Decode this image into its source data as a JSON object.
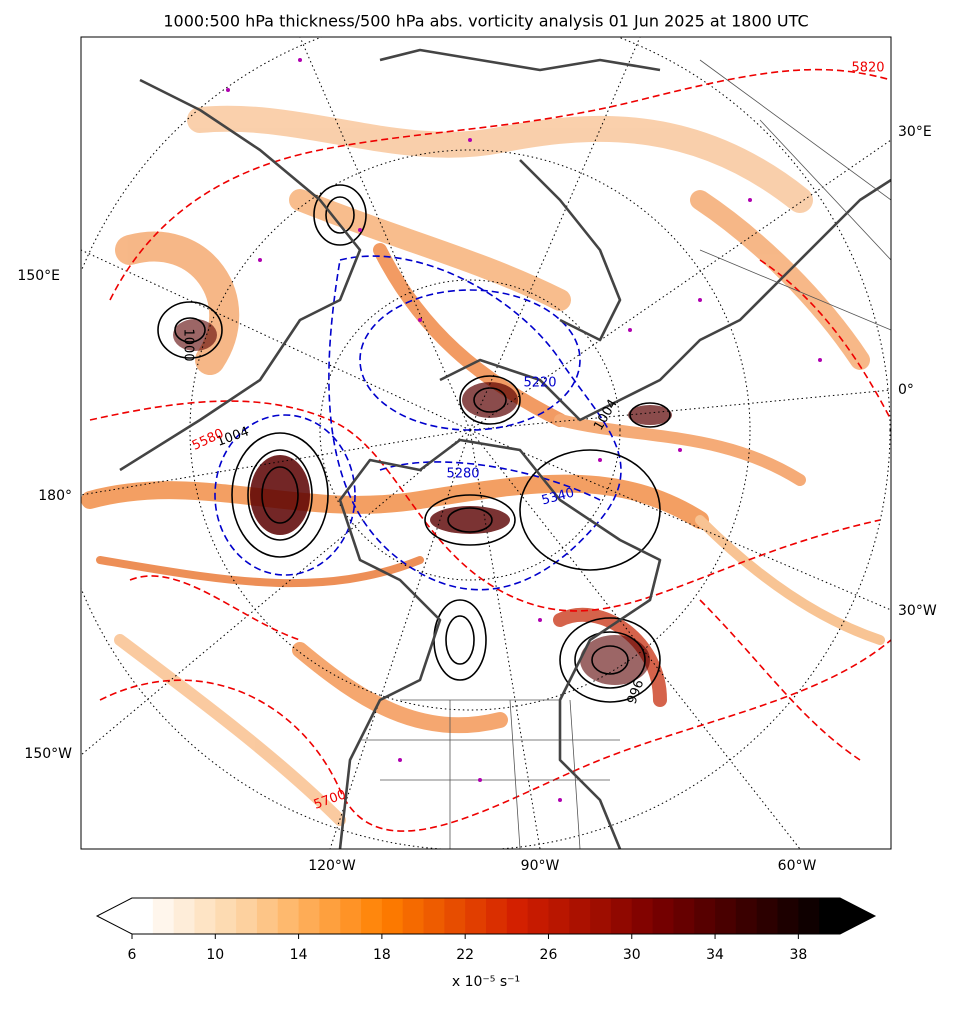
{
  "title": "1000:500 hPa thickness/500 hPa abs. vorticity analysis 01 Jun 2025 at 1800 UTC",
  "map": {
    "lon_labels": [
      "30°E",
      "150°E",
      "0°",
      "180°",
      "30°W",
      "150°W",
      "120°W",
      "90°W",
      "60°W"
    ],
    "contour_labels": [
      {
        "text": "1004",
        "kind": "pressure"
      },
      {
        "text": "5580",
        "kind": "thickness"
      },
      {
        "text": "5220",
        "kind": "thickness"
      },
      {
        "text": "5280",
        "kind": "thickness"
      },
      {
        "text": "5340",
        "kind": "thickness"
      },
      {
        "text": "5820",
        "kind": "thickness"
      },
      {
        "text": "5700",
        "kind": "thickness"
      },
      {
        "text": "1000",
        "kind": "pressure"
      },
      {
        "text": "1004",
        "kind": "pressure"
      },
      {
        "text": "996",
        "kind": "pressure"
      }
    ]
  },
  "colorbar": {
    "levels": [
      6,
      7,
      8,
      9,
      10,
      11,
      12,
      13,
      14,
      15,
      16,
      17,
      18,
      19,
      20,
      21,
      22,
      23,
      24,
      25,
      26,
      27,
      28,
      29,
      30,
      31,
      32,
      33,
      34,
      35,
      36,
      37,
      38,
      39,
      40
    ],
    "ticks": [
      6,
      10,
      14,
      18,
      22,
      26,
      30,
      34,
      38
    ],
    "label": "x 10⁻⁵ s⁻¹",
    "extend": "both"
  }
}
